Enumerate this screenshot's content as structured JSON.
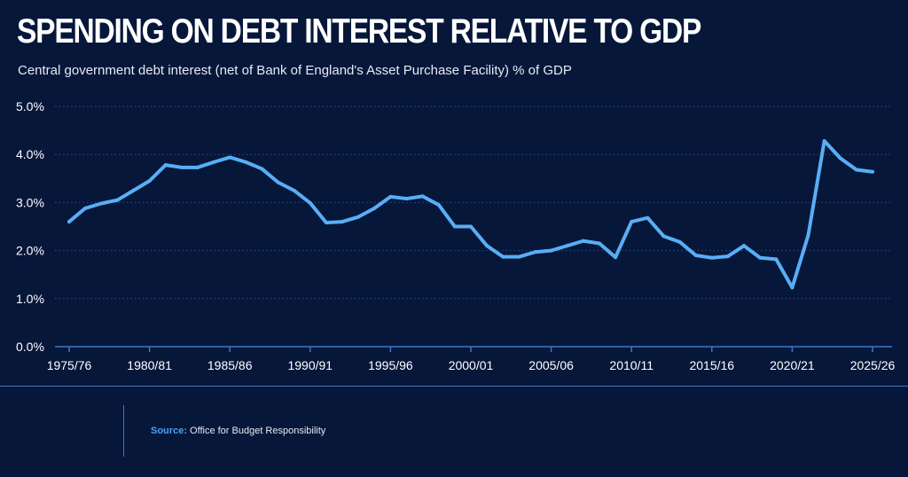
{
  "title": "SPENDING ON DEBT INTEREST RELATIVE TO GDP",
  "subtitle": "Central government debt interest (net of Bank of England's Asset Purchase Facility) % of GDP",
  "source": {
    "label": "Source:",
    "text": "Office for Budget Responsibility"
  },
  "colors": {
    "background": "#06173a",
    "line": "#58aef5",
    "axis": "#3b78c6",
    "grid": "#2c4f86"
  },
  "chart_data": {
    "type": "line",
    "title": "SPENDING ON DEBT INTEREST RELATIVE TO GDP",
    "subtitle": "Central government debt interest (net of Bank of England's Asset Purchase Facility) % of GDP",
    "xlabel": "",
    "ylabel": "",
    "ylim": [
      0,
      5
    ],
    "yticks": [
      0,
      1,
      2,
      3,
      4,
      5
    ],
    "ytick_labels": [
      "0.0%",
      "1.0%",
      "2.0%",
      "3.0%",
      "4.0%",
      "5.0%"
    ],
    "xtick_labels": [
      "1975/76",
      "1980/81",
      "1985/86",
      "1990/91",
      "1995/96",
      "2000/01",
      "2005/06",
      "2010/11",
      "2015/16",
      "2020/21",
      "2025/26"
    ],
    "grid": true,
    "legend": "none",
    "x": [
      "1975/76",
      "1976/77",
      "1977/78",
      "1978/79",
      "1979/80",
      "1980/81",
      "1981/82",
      "1982/83",
      "1983/84",
      "1984/85",
      "1985/86",
      "1986/87",
      "1987/88",
      "1988/89",
      "1989/90",
      "1990/91",
      "1991/92",
      "1992/93",
      "1993/94",
      "1994/95",
      "1995/96",
      "1996/97",
      "1997/98",
      "1998/99",
      "1999/00",
      "2000/01",
      "2001/02",
      "2002/03",
      "2003/04",
      "2004/05",
      "2005/06",
      "2006/07",
      "2007/08",
      "2008/09",
      "2009/10",
      "2010/11",
      "2011/12",
      "2012/13",
      "2013/14",
      "2014/15",
      "2015/16",
      "2016/17",
      "2017/18",
      "2018/19",
      "2019/20",
      "2020/21",
      "2021/22",
      "2022/23",
      "2023/24",
      "2024/25",
      "2025/26"
    ],
    "series": [
      {
        "values": [
          2.6,
          2.88,
          2.98,
          3.05,
          3.25,
          3.45,
          3.78,
          3.73,
          3.73,
          3.84,
          3.94,
          3.84,
          3.7,
          3.42,
          3.25,
          2.99,
          2.58,
          2.6,
          2.7,
          2.88,
          3.12,
          3.08,
          3.13,
          2.95,
          2.5,
          2.5,
          2.1,
          1.87,
          1.87,
          1.97,
          2.0,
          2.1,
          2.2,
          2.15,
          1.86,
          2.6,
          2.68,
          2.3,
          2.18,
          1.9,
          1.85,
          1.88,
          2.1,
          1.85,
          1.82,
          1.23,
          2.32,
          4.28,
          3.92,
          3.68,
          3.64
        ]
      }
    ]
  }
}
